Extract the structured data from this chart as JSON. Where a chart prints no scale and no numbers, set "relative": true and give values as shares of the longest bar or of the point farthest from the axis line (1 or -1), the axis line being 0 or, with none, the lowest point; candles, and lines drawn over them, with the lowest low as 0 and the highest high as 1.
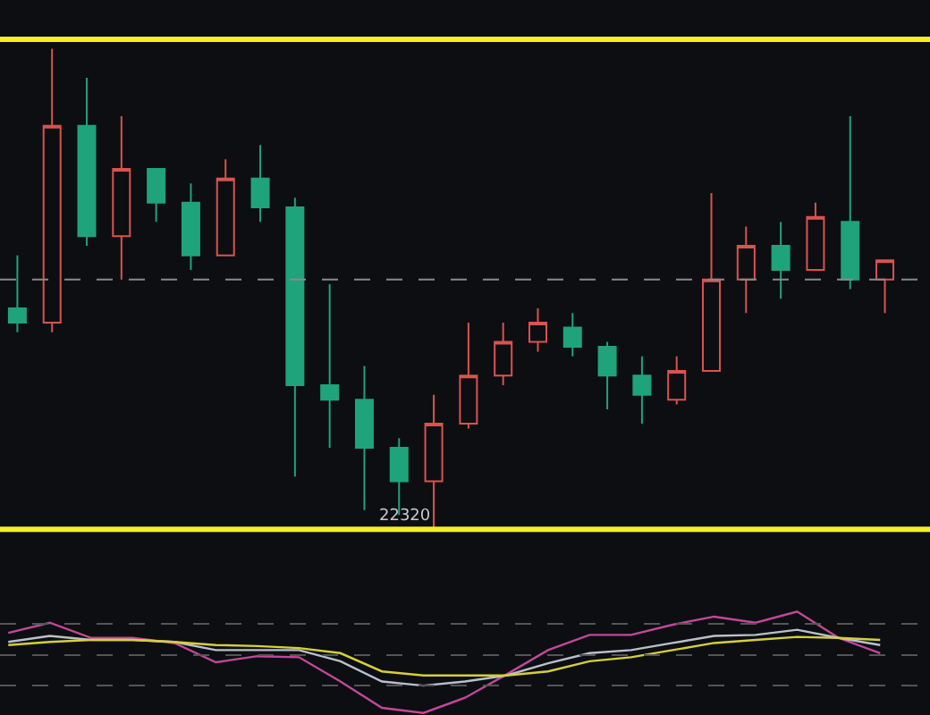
{
  "chart_data": [
    {
      "type": "candlestick",
      "relative": true,
      "tick_labels": false,
      "categories": [
        null,
        null,
        null,
        null,
        null,
        null,
        null,
        null,
        null,
        null,
        null,
        null,
        null,
        null,
        null,
        null,
        null,
        null,
        null,
        null,
        null,
        null,
        null,
        null,
        null,
        null
      ],
      "ohlc": [
        [
          0.46,
          0.57,
          0.41,
          0.43
        ],
        [
          0.43,
          1.0,
          0.41,
          0.84
        ],
        [
          0.84,
          0.94,
          0.59,
          0.61
        ],
        [
          0.61,
          0.86,
          0.52,
          0.75
        ],
        [
          0.75,
          0.75,
          0.64,
          0.68
        ],
        [
          0.68,
          0.72,
          0.54,
          0.57
        ],
        [
          0.57,
          0.77,
          0.57,
          0.73
        ],
        [
          0.73,
          0.8,
          0.64,
          0.67
        ],
        [
          0.67,
          0.69,
          0.11,
          0.3
        ],
        [
          0.3,
          0.51,
          0.17,
          0.27
        ],
        [
          0.27,
          0.34,
          0.04,
          0.17
        ],
        [
          0.17,
          0.19,
          0.03,
          0.1
        ],
        [
          0.1,
          0.28,
          0,
          0.22
        ],
        [
          0.22,
          0.43,
          0.21,
          0.32
        ],
        [
          0.32,
          0.43,
          0.3,
          0.39
        ],
        [
          0.39,
          0.46,
          0.37,
          0.43
        ],
        [
          0.42,
          0.45,
          0.36,
          0.38
        ],
        [
          0.38,
          0.39,
          0.25,
          0.32
        ],
        [
          0.32,
          0.36,
          0.22,
          0.28
        ],
        [
          0.27,
          0.36,
          0.26,
          0.33
        ],
        [
          0.33,
          0.7,
          0.33,
          0.52
        ],
        [
          0.52,
          0.63,
          0.45,
          0.59
        ],
        [
          0.59,
          0.64,
          0.48,
          0.54
        ],
        [
          0.54,
          0.68,
          0.54,
          0.65
        ],
        [
          0.64,
          0.86,
          0.5,
          0.52
        ],
        [
          0.52,
          0.56,
          0.45,
          0.56
        ]
      ],
      "ref_lines": [
        {
          "axis": "y",
          "value": 1.02,
          "color": "#f5f020",
          "line_style": "solid"
        },
        {
          "axis": "y",
          "value": 0,
          "color": "#f5f020",
          "line_style": "solid"
        },
        {
          "axis": "y",
          "value": 0.52,
          "color": "#8a8a8a",
          "line_style": "dashed"
        }
      ],
      "annotations": [
        "22320"
      ]
    },
    {
      "type": "line",
      "relative": true,
      "tick_labels": false,
      "categories": [
        null,
        null,
        null,
        null,
        null,
        null,
        null,
        null,
        null,
        null,
        null,
        null,
        null,
        null,
        null,
        null,
        null,
        null,
        null,
        null,
        null,
        null
      ],
      "series": [
        {
          "color": "#c2489a",
          "values": [
            0.79,
            0.89,
            0.74,
            0.74,
            0.69,
            0.5,
            0.56,
            0.55,
            0.31,
            0.05,
            0,
            0.15,
            0.38,
            0.62,
            0.77,
            0.77,
            0.87,
            0.95,
            0.89,
            1,
            0.74,
            0.59
          ]
        },
        {
          "color": "#b8c0cc",
          "values": [
            0.7,
            0.76,
            0.72,
            0.72,
            0.7,
            0.62,
            0.62,
            0.62,
            0.51,
            0.31,
            0.27,
            0.31,
            0.37,
            0.49,
            0.59,
            0.62,
            0.69,
            0.76,
            0.77,
            0.82,
            0.74,
            0.67
          ]
        },
        {
          "color": "#d6cf3a",
          "values": [
            0.67,
            0.7,
            0.72,
            0.72,
            0.7,
            0.67,
            0.66,
            0.64,
            0.59,
            0.41,
            0.37,
            0.37,
            0.37,
            0.41,
            0.51,
            0.55,
            0.62,
            0.69,
            0.72,
            0.75,
            0.74,
            0.72
          ]
        }
      ],
      "ref_lines": [
        {
          "axis": "y",
          "value": 0.88,
          "color": "#555555",
          "line_style": "dashed"
        },
        {
          "axis": "y",
          "value": 0.57,
          "color": "#555555",
          "line_style": "dashed"
        },
        {
          "axis": "y",
          "value": 0.27,
          "color": "#555555",
          "line_style": "dashed"
        }
      ]
    }
  ]
}
